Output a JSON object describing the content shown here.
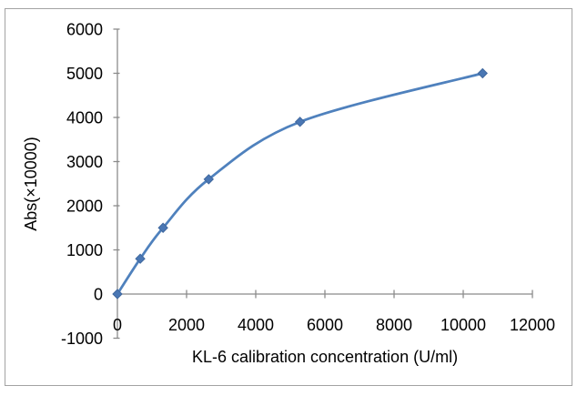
{
  "figure": {
    "background": "#ffffff",
    "border_color": "#a3a3a3"
  },
  "chart_data": {
    "type": "line",
    "title": "",
    "xlabel": "KL-6 calibration concentration (U/ml)",
    "ylabel": "Abs(×10000)",
    "x": [
      0,
      660,
      1320,
      2640,
      5280,
      10560
    ],
    "y": [
      0,
      800,
      1500,
      2600,
      3900,
      5000
    ],
    "xlim": [
      0,
      12000
    ],
    "ylim": [
      -1000,
      6000
    ],
    "xticks": [
      0,
      2000,
      4000,
      6000,
      8000,
      10000,
      12000
    ],
    "yticks": [
      6000,
      5000,
      4000,
      3000,
      2000,
      1000,
      0,
      -1000
    ],
    "grid": false,
    "legend": "none",
    "smooth": true,
    "marker": "diamond",
    "line_color": "#4f81bd",
    "marker_fill": "#4a77b4",
    "marker_stroke": "#40689e",
    "axis_color": "#8b8b8b",
    "text_color": "#000000"
  }
}
